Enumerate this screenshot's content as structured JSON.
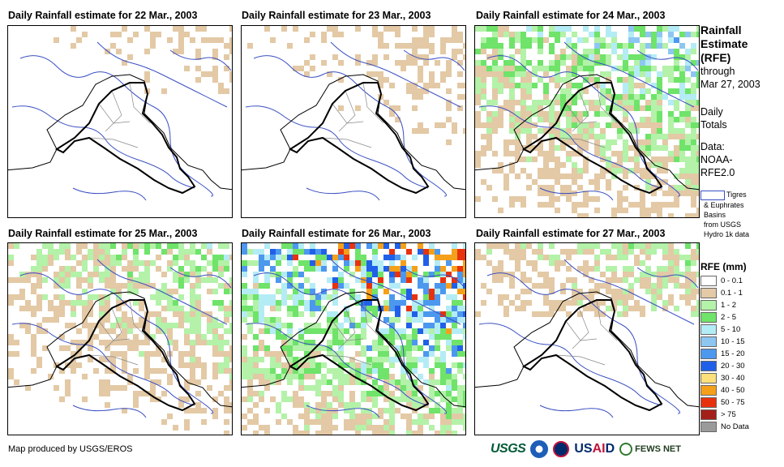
{
  "panels": [
    {
      "title": "Daily Rainfall estimate for 22 Mar., 2003"
    },
    {
      "title": "Daily Rainfall estimate for 23 Mar., 2003"
    },
    {
      "title": "Daily Rainfall estimate for 24 Mar., 2003"
    },
    {
      "title": "Daily Rainfall estimate for 25 Mar., 2003"
    },
    {
      "title": "Daily Rainfall estimate for 26 Mar., 2003"
    },
    {
      "title": "Daily Rainfall estimate for 27 Mar., 2003"
    }
  ],
  "sidebar": {
    "heading_1": "Rainfall",
    "heading_2": "Estimate",
    "heading_3": "(RFE)",
    "through": "through",
    "date": "Mar 27, 2003",
    "daily": "Daily",
    "totals": "Totals",
    "data_label": "Data:",
    "data_source_1": "NOAA-",
    "data_source_2": "RFE2.0"
  },
  "basin_legend": {
    "line1": "Tigres",
    "line2": "& Euphrates",
    "line3": "Basins",
    "line4": "from USGS",
    "line5": "Hydro 1k data",
    "color": "#3a4fc2"
  },
  "legend": {
    "title": "RFE (mm)",
    "items": [
      {
        "label": "0 - 0.1",
        "color": "#ffffff"
      },
      {
        "label": "0.1 - 1",
        "color": "#e3c9a5"
      },
      {
        "label": "1 - 2",
        "color": "#b3f2a8"
      },
      {
        "label": "2 - 5",
        "color": "#6fe36a"
      },
      {
        "label": "5 - 10",
        "color": "#b4ecf5"
      },
      {
        "label": "10 - 15",
        "color": "#8ec6f2"
      },
      {
        "label": "15 - 20",
        "color": "#4c98ee"
      },
      {
        "label": "20 - 30",
        "color": "#2060e8"
      },
      {
        "label": "30 - 40",
        "color": "#fde07a"
      },
      {
        "label": "40 - 50",
        "color": "#f5a01a"
      },
      {
        "label": "50 - 75",
        "color": "#e8320e"
      },
      {
        "label": "> 75",
        "color": "#a3201a"
      },
      {
        "label": "No Data",
        "color": "#9a9a9a"
      }
    ]
  },
  "footer": {
    "credit": "Map produced by USGS/EROS"
  },
  "logos": {
    "usgs": "USGS",
    "usaid_us": "US",
    "usaid_ai": "AI",
    "usaid_d": "D",
    "fews": "FEWS NET"
  }
}
